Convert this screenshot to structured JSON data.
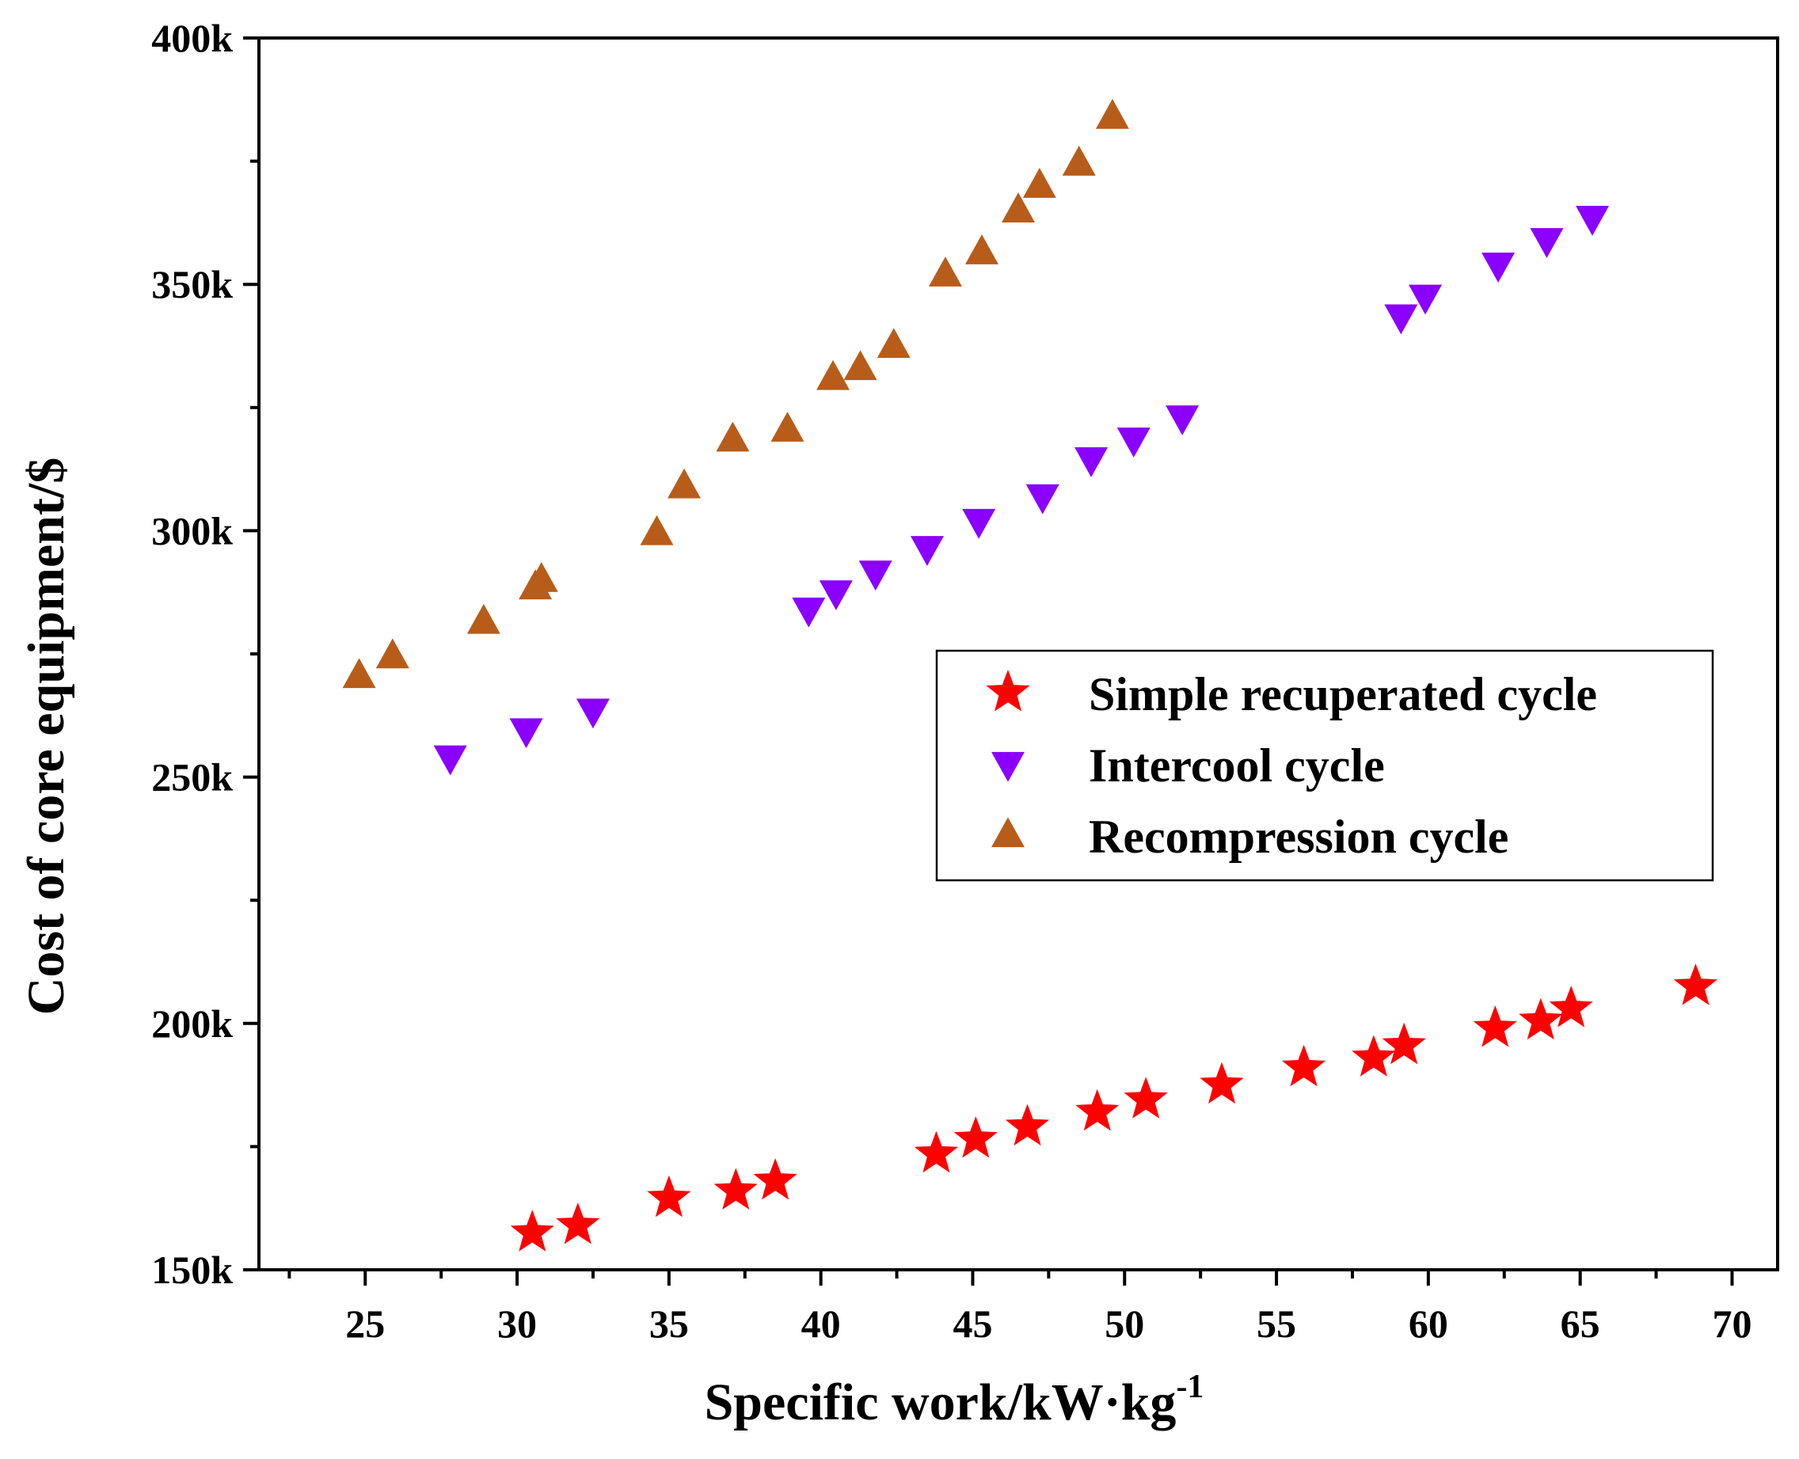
{
  "chart_data": {
    "type": "scatter",
    "title": "",
    "xlabel": "Specific work/kW·kg",
    "xlabel_superscript": "-1",
    "ylabel": "Cost of core equipment/$",
    "xlim": [
      21.5,
      71.5
    ],
    "ylim": [
      150000,
      400000
    ],
    "x_ticks": [
      25,
      30,
      35,
      40,
      45,
      50,
      55,
      60,
      65,
      70
    ],
    "x_tick_labels": [
      "25",
      "30",
      "35",
      "40",
      "45",
      "50",
      "55",
      "60",
      "65",
      "70"
    ],
    "y_ticks": [
      150000,
      200000,
      250000,
      300000,
      350000,
      400000
    ],
    "y_tick_labels": [
      "150k",
      "200k",
      "250k",
      "300k",
      "350k",
      "400k"
    ],
    "grid": false,
    "legend_position": "center-right",
    "series": [
      {
        "name": "Simple recuperated cycle",
        "marker": "star",
        "color": "#ff0000",
        "points": [
          [
            30.5,
            157500
          ],
          [
            32.0,
            159000
          ],
          [
            35.0,
            164500
          ],
          [
            37.2,
            166000
          ],
          [
            38.5,
            168000
          ],
          [
            43.8,
            173500
          ],
          [
            45.1,
            176500
          ],
          [
            46.8,
            179000
          ],
          [
            49.1,
            182000
          ],
          [
            50.7,
            184500
          ],
          [
            53.2,
            187500
          ],
          [
            55.9,
            191000
          ],
          [
            58.2,
            193000
          ],
          [
            59.2,
            195500
          ],
          [
            62.2,
            199000
          ],
          [
            63.7,
            200500
          ],
          [
            64.7,
            203000
          ],
          [
            68.8,
            207500
          ]
        ]
      },
      {
        "name": "Intercool cycle",
        "marker": "triangle-down",
        "color": "#8b00ff",
        "points": [
          [
            27.8,
            254000
          ],
          [
            30.3,
            259500
          ],
          [
            32.5,
            263500
          ],
          [
            39.6,
            284000
          ],
          [
            40.5,
            287500
          ],
          [
            41.8,
            291500
          ],
          [
            43.5,
            296500
          ],
          [
            45.2,
            302000
          ],
          [
            47.3,
            307000
          ],
          [
            48.9,
            314500
          ],
          [
            50.3,
            318500
          ],
          [
            51.9,
            323000
          ],
          [
            59.1,
            343500
          ],
          [
            59.9,
            347500
          ],
          [
            62.3,
            354000
          ],
          [
            63.9,
            359000
          ],
          [
            65.4,
            363500
          ]
        ]
      },
      {
        "name": "Recompression cycle",
        "marker": "triangle-up",
        "color": "#b85c1a",
        "points": [
          [
            24.8,
            270500
          ],
          [
            25.9,
            274500
          ],
          [
            28.9,
            281500
          ],
          [
            30.6,
            288500
          ],
          [
            30.8,
            290000
          ],
          [
            34.6,
            299500
          ],
          [
            35.5,
            309000
          ],
          [
            37.1,
            318500
          ],
          [
            38.9,
            320500
          ],
          [
            40.4,
            331000
          ],
          [
            41.3,
            333000
          ],
          [
            42.4,
            337500
          ],
          [
            44.1,
            352000
          ],
          [
            45.3,
            356500
          ],
          [
            46.5,
            365000
          ],
          [
            47.2,
            370000
          ],
          [
            48.5,
            374500
          ],
          [
            49.6,
            384000
          ]
        ]
      }
    ]
  }
}
